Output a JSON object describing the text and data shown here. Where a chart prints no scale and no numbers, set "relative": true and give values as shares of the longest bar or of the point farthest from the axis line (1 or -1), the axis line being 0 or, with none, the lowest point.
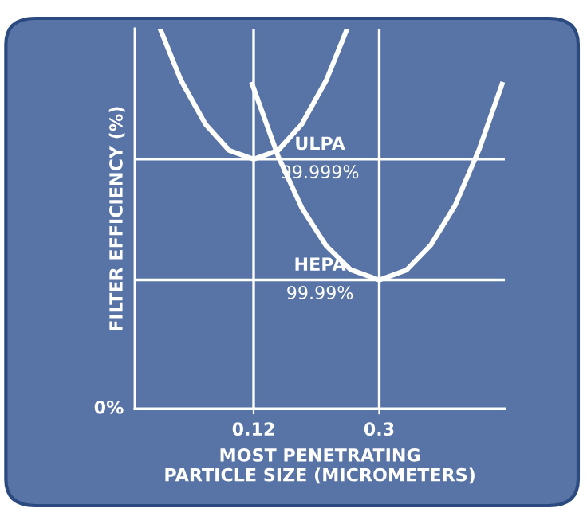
{
  "chart_data": {
    "type": "line",
    "relative": true,
    "xlabel": "MOST PENETRATING\nPARTICLE SIZE (MICROMETERS)",
    "ylabel": "FILTER EFFICIENCY (%)",
    "xlim": [
      -0.05,
      0.48
    ],
    "xticks": [
      0.12,
      0.3
    ],
    "series": [
      {
        "color": "#ffffff",
        "x": [
          -0.014,
          0.016,
          0.051,
          0.085,
          0.12,
          0.155,
          0.189,
          0.224,
          0.254
        ],
        "values": [
          1.0,
          0.864,
          0.749,
          0.68,
          0.657,
          0.68,
          0.749,
          0.864,
          1.0
        ]
      },
      {
        "color": "#ffffff",
        "x": [
          0.118,
          0.155,
          0.189,
          0.224,
          0.259,
          0.3,
          0.339,
          0.374,
          0.409,
          0.443,
          0.476
        ],
        "values": [
          0.854,
          0.665,
          0.529,
          0.429,
          0.366,
          0.339,
          0.365,
          0.431,
          0.536,
          0.682,
          0.854
        ]
      }
    ],
    "ref_lines": [
      {
        "axis": "y",
        "value": 0.657,
        "label": "ULPA\n99.999%",
        "color": "#ffffff"
      },
      {
        "axis": "y",
        "value": 0.339,
        "label": "HEPA\n99.99%",
        "color": "#ffffff"
      },
      {
        "axis": "x",
        "value": 0.12,
        "color": "#ffffff"
      },
      {
        "axis": "x",
        "value": 0.3,
        "color": "#ffffff"
      }
    ],
    "annotations": [
      "0%"
    ],
    "grid": false,
    "marker": "none",
    "line_style": "solid"
  }
}
